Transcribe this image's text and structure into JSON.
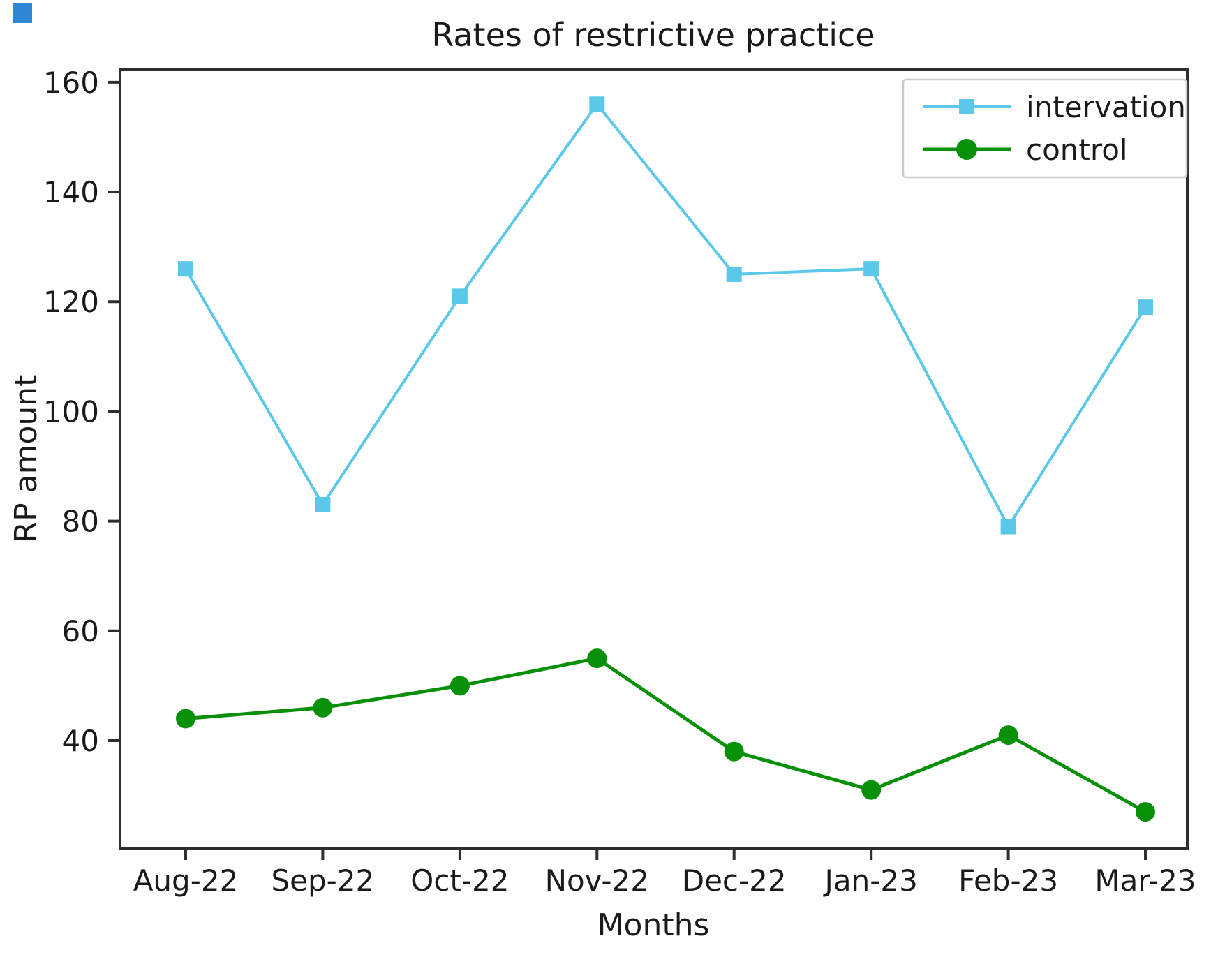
{
  "title": "Rates of restrictive practice",
  "chart_data": {
    "type": "line",
    "title": "Rates of restrictive practice",
    "xlabel": "Months",
    "ylabel": "RP amount",
    "categories": [
      "Aug-22",
      "Sep-22",
      "Oct-22",
      "Nov-22",
      "Dec-22",
      "Jan-23",
      "Feb-23",
      "Mar-23"
    ],
    "series": [
      {
        "name": "intervation",
        "marker": "square",
        "color": "#5bc8ea",
        "values": [
          126,
          83,
          121,
          156,
          125,
          126,
          79,
          119
        ]
      },
      {
        "name": "control",
        "marker": "circle",
        "color": "#089008",
        "values": [
          44,
          46,
          50,
          55,
          38,
          31,
          41,
          27
        ]
      }
    ],
    "yticks": [
      40,
      60,
      80,
      100,
      120,
      140,
      160
    ],
    "ylim": [
      20.4,
      162.4
    ],
    "grid": false,
    "legend_position": "upper right"
  },
  "artifact": {
    "note": "small blue square in extreme top-left corner",
    "color": "#2e86d4"
  }
}
